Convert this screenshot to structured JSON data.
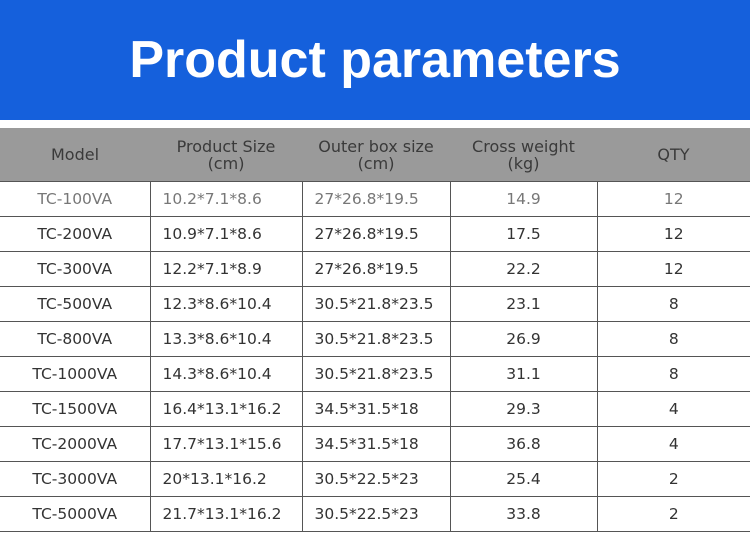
{
  "header": {
    "title": "Product parameters"
  },
  "table": {
    "columns": [
      [
        "Model"
      ],
      [
        "Product Size",
        "(cm)"
      ],
      [
        "Outer box size",
        "(cm)"
      ],
      [
        "Cross weight",
        "(kg)"
      ],
      [
        "QTY"
      ]
    ],
    "rows": [
      [
        "TC-100VA",
        "10.2*7.1*8.6",
        "27*26.8*19.5",
        "14.9",
        "12"
      ],
      [
        "TC-200VA",
        "10.9*7.1*8.6",
        "27*26.8*19.5",
        "17.5",
        "12"
      ],
      [
        "TC-300VA",
        "12.2*7.1*8.9",
        "27*26.8*19.5",
        "22.2",
        "12"
      ],
      [
        "TC-500VA",
        "12.3*8.6*10.4",
        "30.5*21.8*23.5",
        "23.1",
        "8"
      ],
      [
        "TC-800VA",
        "13.3*8.6*10.4",
        "30.5*21.8*23.5",
        "26.9",
        "8"
      ],
      [
        "TC-1000VA",
        "14.3*8.6*10.4",
        "30.5*21.8*23.5",
        "31.1",
        "8"
      ],
      [
        "TC-1500VA",
        "16.4*13.1*16.2",
        "34.5*31.5*18",
        "29.3",
        "4"
      ],
      [
        "TC-2000VA",
        "17.7*13.1*15.6",
        "34.5*31.5*18",
        "36.8",
        "4"
      ],
      [
        "TC-3000VA",
        "20*13.1*16.2",
        "30.5*22.5*23",
        "25.4",
        "2"
      ],
      [
        "TC-5000VA",
        "21.7*13.1*16.2",
        "30.5*22.5*23",
        "33.8",
        "2"
      ]
    ]
  }
}
